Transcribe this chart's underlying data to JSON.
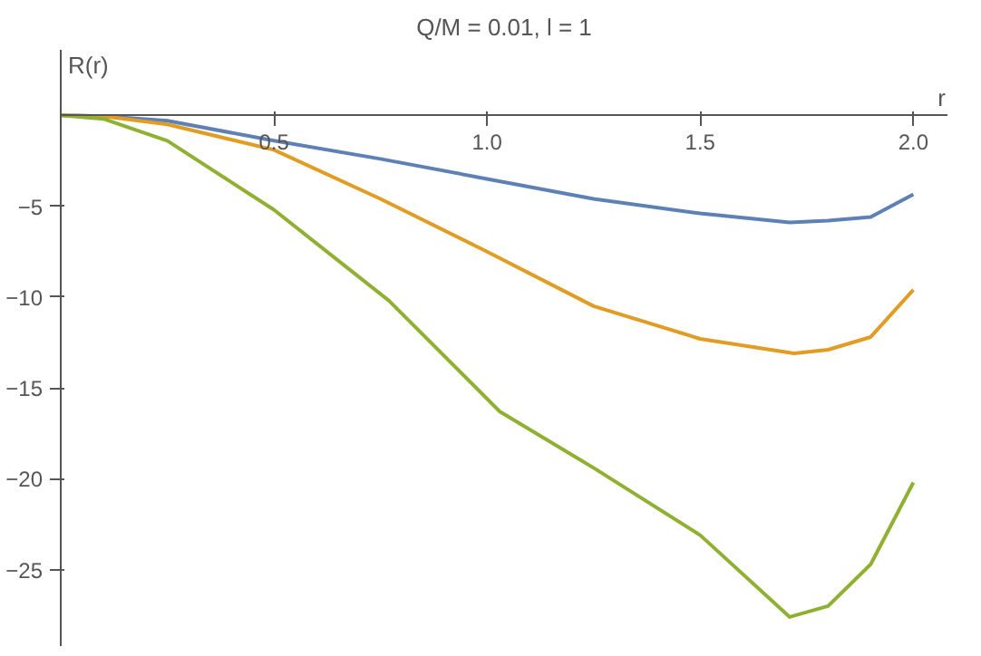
{
  "chart_data": {
    "type": "line",
    "title": "Q/M = 0.01, l = 1",
    "xlabel": "r",
    "ylabel": "R(r)",
    "xlim": [
      0,
      2.08
    ],
    "ylim": [
      -29.2,
      3.6
    ],
    "xticks": [
      0.5,
      {
        "value": 1,
        "label": "1.0"
      },
      1.5,
      {
        "value": 2,
        "label": "2.0"
      }
    ],
    "yticks": [
      {
        "value": -5,
        "label": "−5"
      },
      {
        "value": -10,
        "label": "−10"
      },
      {
        "value": -15,
        "label": "−15"
      },
      {
        "value": -20,
        "label": "−20"
      },
      {
        "value": -25,
        "label": "−25"
      }
    ],
    "grid": false,
    "marker": "none",
    "line_style": "solid",
    "series": [
      {
        "color": "#5e81b5",
        "x": [
          0,
          0.1,
          0.25,
          0.5,
          0.75,
          1.0,
          1.25,
          1.5,
          1.71,
          1.8,
          1.9,
          2.0
        ],
        "values": [
          0,
          -0.05,
          -0.3,
          -1.4,
          -2.4,
          -3.5,
          -4.6,
          -5.4,
          -5.9,
          -5.8,
          -5.6,
          -4.35
        ]
      },
      {
        "color": "#e19c24",
        "x": [
          0,
          0.1,
          0.25,
          0.5,
          0.75,
          1.0,
          1.25,
          1.5,
          1.72,
          1.8,
          1.9,
          2.0
        ],
        "values": [
          0,
          -0.05,
          -0.5,
          -1.9,
          -4.6,
          -7.5,
          -10.5,
          -12.3,
          -13.1,
          -12.9,
          -12.2,
          -9.6
        ]
      },
      {
        "color": "#8fb032",
        "x": [
          0,
          0.1,
          0.25,
          0.5,
          0.77,
          1.03,
          1.25,
          1.5,
          1.71,
          1.8,
          1.9,
          2.0
        ],
        "values": [
          0,
          -0.2,
          -1.4,
          -5.2,
          -10.2,
          -16.3,
          -19.4,
          -23.1,
          -27.6,
          -27.0,
          -24.7,
          -20.2
        ]
      }
    ]
  }
}
